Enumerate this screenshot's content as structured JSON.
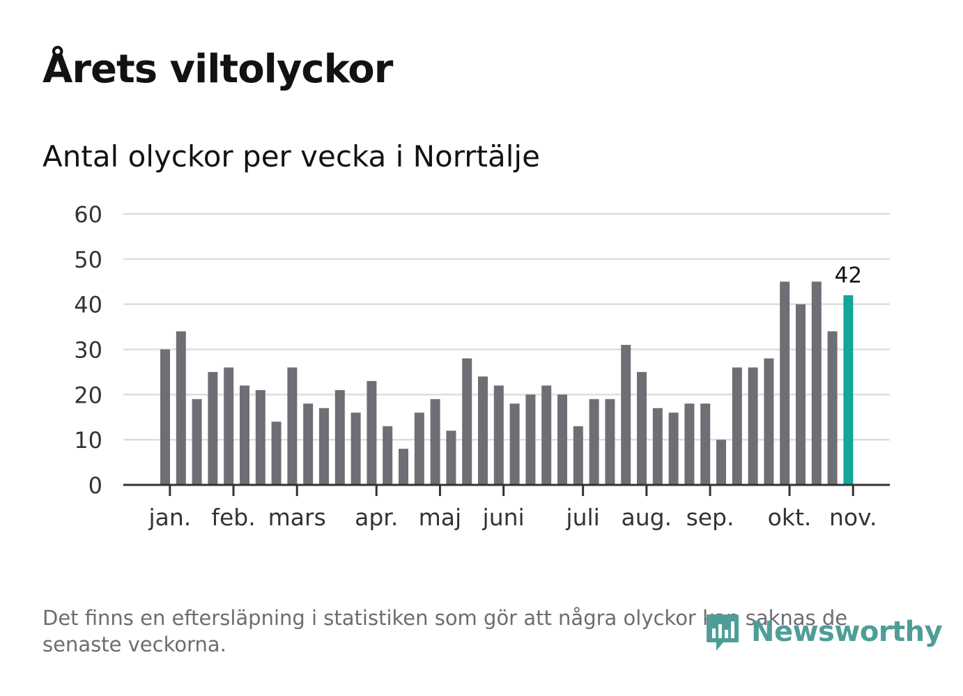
{
  "title": "Årets viltolyckor",
  "subtitle": "Antal olyckor per vecka i Norrtälje",
  "footnote": "Det finns en eftersläpning i statistiken som gör att några olyckor kan saknas de senaste veckorna.",
  "logo": {
    "text": "Newsworthy",
    "color": "#4f9d98"
  },
  "colors": {
    "bar": "#6f6e74",
    "highlight": "#13a69a",
    "grid": "#dddddd",
    "axis": "#333333"
  },
  "chart_data": {
    "type": "bar",
    "title": "Årets viltolyckor",
    "subtitle": "Antal olyckor per vecka i Norrtälje",
    "xlabel": "",
    "ylabel": "",
    "ylim": [
      0,
      60
    ],
    "yticks": [
      0,
      10,
      20,
      30,
      40,
      50,
      60
    ],
    "grid": true,
    "values": [
      30,
      34,
      19,
      25,
      26,
      22,
      21,
      14,
      26,
      18,
      17,
      21,
      16,
      23,
      13,
      8,
      16,
      19,
      12,
      28,
      24,
      22,
      18,
      20,
      22,
      20,
      13,
      19,
      19,
      31,
      25,
      17,
      16,
      18,
      18,
      10,
      26,
      26,
      28,
      45,
      40,
      45,
      34,
      42
    ],
    "highlight_index": 43,
    "highlight_label": "42",
    "month_ticks": [
      {
        "label": "jan.",
        "week_index": 0.3
      },
      {
        "label": "feb.",
        "week_index": 4.3
      },
      {
        "label": "mars",
        "week_index": 8.3
      },
      {
        "label": "apr.",
        "week_index": 13.3
      },
      {
        "label": "maj",
        "week_index": 17.3
      },
      {
        "label": "juni",
        "week_index": 21.3
      },
      {
        "label": "juli",
        "week_index": 26.3
      },
      {
        "label": "aug.",
        "week_index": 30.3
      },
      {
        "label": "sep.",
        "week_index": 34.3
      },
      {
        "label": "okt.",
        "week_index": 39.3
      },
      {
        "label": "nov.",
        "week_index": 43.3
      }
    ]
  }
}
